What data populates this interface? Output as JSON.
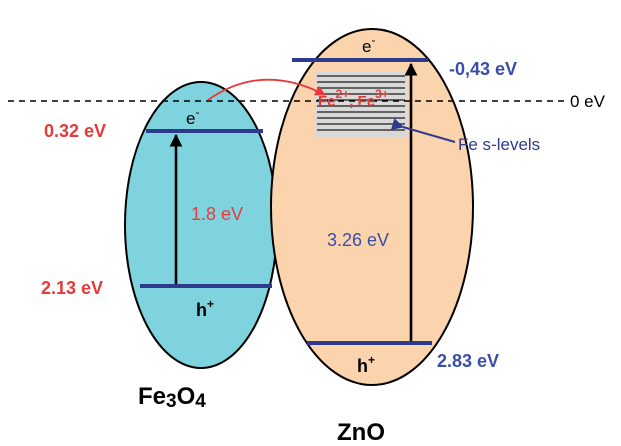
{
  "zero_level": {
    "label": "0 eV"
  },
  "fe3o4": {
    "name": {
      "main": "Fe",
      "s1": "3",
      "mid": "O",
      "s2": "4"
    },
    "cb_energy": "0.32 eV",
    "vb_energy": "2.13 eV",
    "band_gap": "1.8 eV",
    "electron": {
      "main": "e",
      "sup": "-"
    },
    "hole": {
      "main": "h",
      "sup": "+"
    }
  },
  "zno": {
    "name": "ZnO",
    "cb_energy": "-0,43 eV",
    "vb_energy": "2.83 eV",
    "band_gap": "3.26 eV",
    "electron": {
      "main": "e",
      "sup": "-"
    },
    "hole": {
      "main": "h",
      "sup": "+"
    }
  },
  "fe_ions": {
    "a": "Fe",
    "a_sup": "2+",
    "sep": ", ",
    "b": "Fe",
    "b_sup": "3+"
  },
  "fe_levels_label": "Fe s-levels",
  "colors": {
    "fe3o4_fill": "#7fd3df",
    "zno_fill": "#fbd3ad",
    "band_line": "#2e3a8c",
    "red_text": "#e63a3a",
    "blue_text": "#3a4fa8",
    "levels_bg": "#d9d9d9",
    "level_line": "#3b3b3b"
  }
}
